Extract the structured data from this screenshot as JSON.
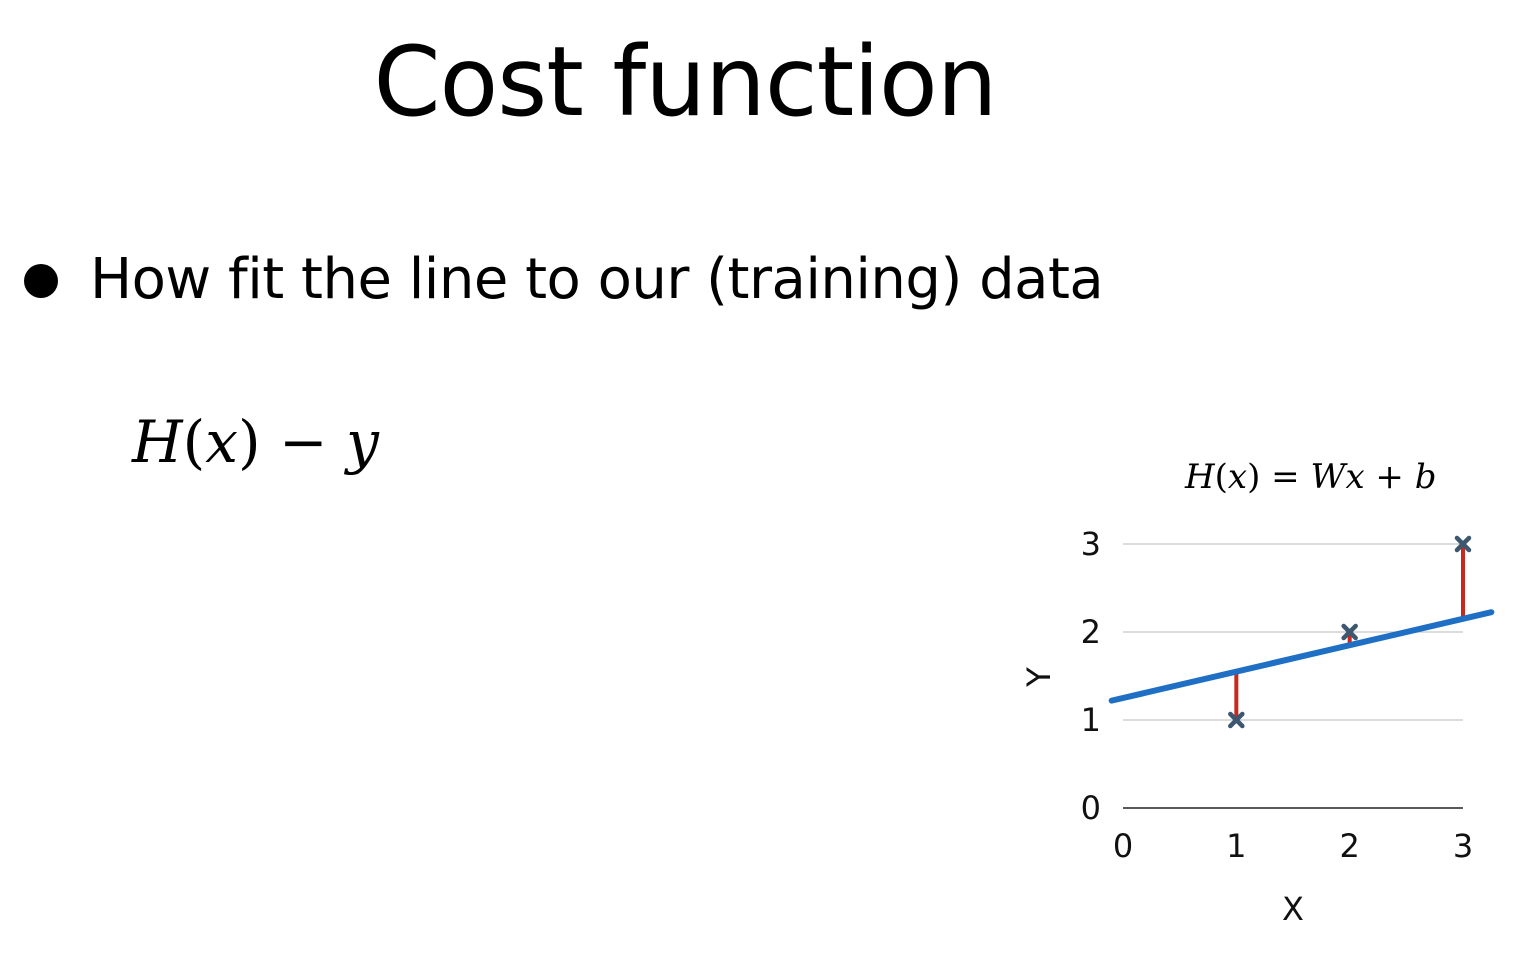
{
  "slide": {
    "title": "Cost function",
    "bullet": "How fit the line to our (training) data"
  },
  "formula": {
    "main_H": "H",
    "main_open": "(",
    "main_x": "x",
    "main_close": ")",
    "main_minus": " − ",
    "main_y": "y"
  },
  "chart_data": {
    "type": "scatter",
    "title": "H(x) = Wx + b",
    "title_parts": {
      "H": "H",
      "open": "(",
      "x": "x",
      "close": ")",
      "eq": " = ",
      "W": "W",
      "x2": "x",
      "plus": " + ",
      "b": "b"
    },
    "xlabel": "X",
    "ylabel": "Y",
    "xlim": [
      0,
      3
    ],
    "ylim": [
      0,
      3
    ],
    "xticks": [
      "0",
      "1",
      "2",
      "3"
    ],
    "yticks": [
      "0",
      "1",
      "2",
      "3"
    ],
    "grid": true,
    "points": [
      {
        "x": 1,
        "y": 1
      },
      {
        "x": 2,
        "y": 2
      },
      {
        "x": 3,
        "y": 3
      }
    ],
    "fit_line": {
      "slope": 0.3,
      "intercept": 1.25,
      "x_range": [
        -0.1,
        3.25
      ]
    },
    "colors": {
      "points": "#3e5770",
      "line": "#1f6fc4",
      "residuals": "#c8281e",
      "grid": "#c8c8c8",
      "axis": "#222222"
    }
  }
}
